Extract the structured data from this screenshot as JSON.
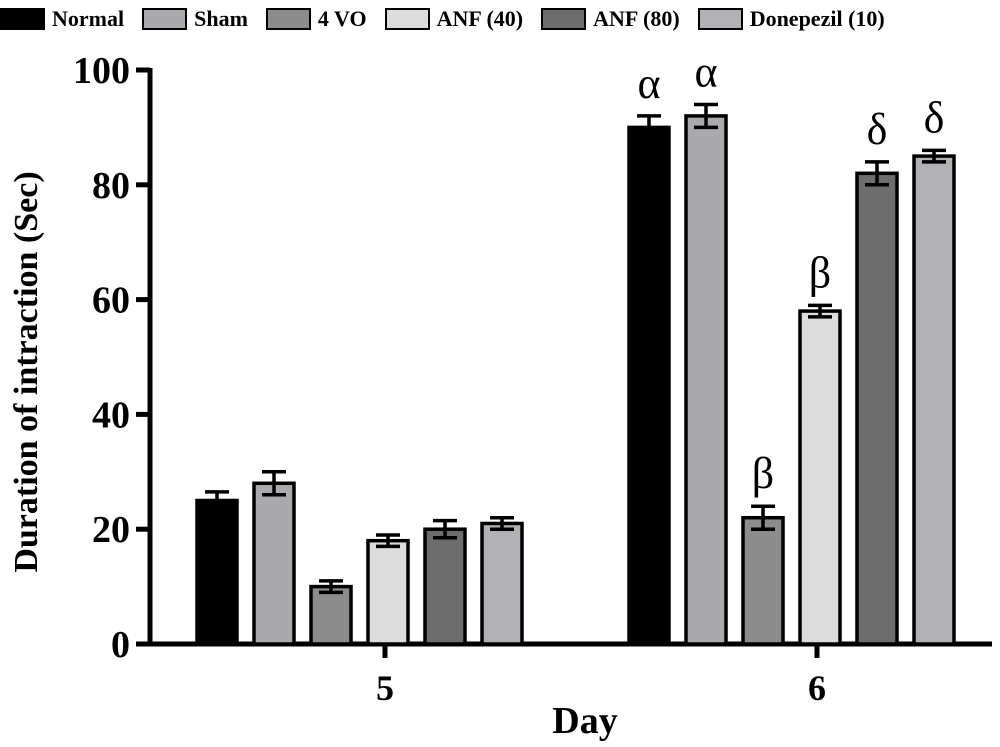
{
  "chart_data": {
    "type": "bar",
    "title": "",
    "xlabel": "Day",
    "ylabel": "Duration of intraction (Sec)",
    "ylim": [
      0,
      100
    ],
    "yticks": [
      "0",
      "20",
      "40",
      "60",
      "80",
      "100"
    ],
    "categories": [
      "5",
      "6"
    ],
    "series": [
      {
        "name": "Normal",
        "color": "#000000",
        "values": [
          25,
          90
        ],
        "errors": [
          1.5,
          2
        ],
        "annotations": [
          "",
          "α"
        ]
      },
      {
        "name": "Sham",
        "color": "#a9a9ae",
        "values": [
          28,
          92
        ],
        "errors": [
          2,
          2
        ],
        "annotations": [
          "",
          "α"
        ]
      },
      {
        "name": "4 VO",
        "color": "#8c8c8c",
        "values": [
          10,
          22
        ],
        "errors": [
          1,
          2
        ],
        "annotations": [
          "",
          "β"
        ]
      },
      {
        "name": "ANF (40)",
        "color": "#dcdcdc",
        "values": [
          18,
          58
        ],
        "errors": [
          1,
          1
        ],
        "annotations": [
          "",
          "β"
        ]
      },
      {
        "name": "ANF (80)",
        "color": "#6d6d6d",
        "values": [
          20,
          82
        ],
        "errors": [
          1.5,
          2
        ],
        "annotations": [
          "",
          "δ"
        ]
      },
      {
        "name": "Donepezil (10)",
        "color": "#b1b1b6",
        "values": [
          21,
          85
        ],
        "errors": [
          1,
          1
        ],
        "annotations": [
          "",
          "δ"
        ]
      }
    ],
    "legend_position": "top",
    "grid": false
  }
}
